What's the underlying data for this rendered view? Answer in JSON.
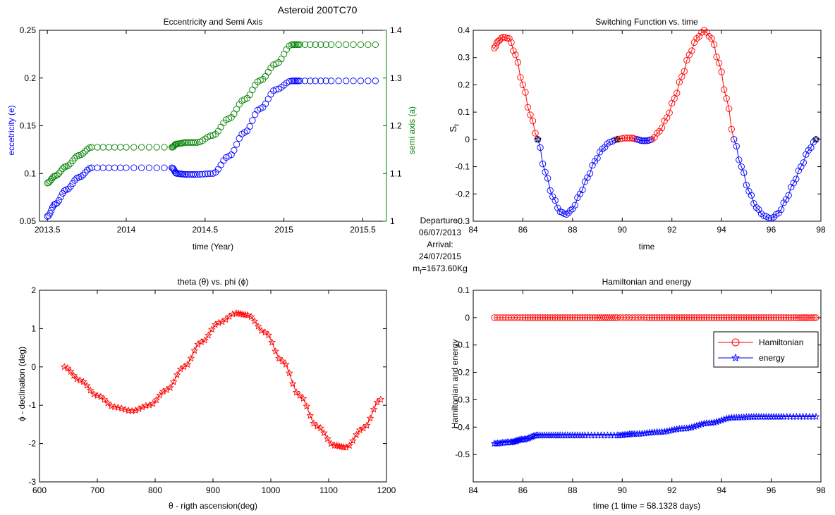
{
  "figure": {
    "title": "Asteroid 200TC70",
    "info_lines": [
      "Departure:",
      "06/07/2013",
      "Arrival:",
      "24/07/2015"
    ],
    "mass_label": "m",
    "mass_sub": "f",
    "mass_value": "=1673.60Kg"
  },
  "colors": {
    "blue": "#0000ff",
    "red": "#ff0000",
    "green": "#008000",
    "black": "#000000"
  },
  "chart_data": [
    {
      "id": "ecc",
      "type": "scatter",
      "title": "Eccentricity and Semi Axis",
      "xlabel": "time (Year)",
      "ylabel": "eccetricity (e)",
      "ylabel_right": "semi axis (a)",
      "xlim": [
        2013.45,
        2015.65
      ],
      "ylim": [
        0.05,
        0.25
      ],
      "ylim_right": [
        1.0,
        1.4
      ],
      "xticks": [
        2013.5,
        2014,
        2014.5,
        2015,
        2015.5
      ],
      "xtick_labels": [
        "2013.5",
        "2014",
        "2014.5",
        "2015",
        "2015.5"
      ],
      "yticks": [
        0.05,
        0.1,
        0.15,
        0.2,
        0.25
      ],
      "ytick_labels": [
        "0.05",
        "0.1",
        "0.15",
        "0.2",
        "0.25"
      ],
      "yticks_right": [
        1,
        1.1,
        1.2,
        1.3,
        1.4
      ],
      "ytick_labels_right": [
        "1",
        "1.1",
        "1.2",
        "1.3",
        "1.4"
      ],
      "series": [
        {
          "axis": "left",
          "color": "#0000ff",
          "marker": "circle",
          "x": [
            2013.5,
            2013.55,
            2013.62,
            2013.7,
            2013.78,
            2014.0,
            2014.29,
            2014.32,
            2014.38,
            2014.45,
            2014.55,
            2014.65,
            2014.75,
            2014.85,
            2014.95,
            2015.05,
            2015.1,
            2015.3,
            2015.58
          ],
          "y": [
            0.055,
            0.068,
            0.083,
            0.096,
            0.106,
            0.106,
            0.106,
            0.1,
            0.099,
            0.099,
            0.1,
            0.118,
            0.143,
            0.168,
            0.188,
            0.197,
            0.197,
            0.197,
            0.197
          ]
        },
        {
          "axis": "right",
          "color": "#008000",
          "marker": "circle",
          "x": [
            2013.5,
            2013.55,
            2013.62,
            2013.7,
            2013.78,
            2014.0,
            2014.29,
            2014.32,
            2014.38,
            2014.45,
            2014.55,
            2014.65,
            2014.75,
            2014.85,
            2014.95,
            2015.05,
            2015.1,
            2015.3,
            2015.58
          ],
          "y": [
            1.08,
            1.095,
            1.115,
            1.138,
            1.155,
            1.155,
            1.155,
            1.162,
            1.165,
            1.165,
            1.18,
            1.215,
            1.255,
            1.295,
            1.33,
            1.37,
            1.37,
            1.37,
            1.37
          ]
        }
      ]
    },
    {
      "id": "switch",
      "type": "line",
      "title": "Switching Function vs. time",
      "xlabel": "time",
      "ylabel": "S",
      "ylabel_sub": "f",
      "xlim": [
        84,
        98
      ],
      "ylim": [
        -0.3,
        0.4
      ],
      "xticks": [
        84,
        86,
        88,
        90,
        92,
        94,
        96,
        98
      ],
      "xtick_labels": [
        "84",
        "86",
        "88",
        "90",
        "92",
        "94",
        "96",
        "98"
      ],
      "yticks": [
        -0.3,
        -0.2,
        -0.1,
        0,
        0.1,
        0.2,
        0.3,
        0.4
      ],
      "ytick_labels": [
        "-0.3",
        "-0.2",
        "-0.1",
        "0",
        "0.1",
        "0.2",
        "0.3",
        "0.4"
      ],
      "series": [
        {
          "color": "#ff0000",
          "marker": "circle",
          "x": [
            84.85,
            85.0,
            85.2,
            85.45,
            85.7,
            86.0,
            86.3,
            86.6
          ],
          "y": [
            0.335,
            0.36,
            0.375,
            0.37,
            0.31,
            0.2,
            0.09,
            0.0
          ]
        },
        {
          "color": "#0000ff",
          "marker": "circle",
          "x": [
            86.6,
            86.9,
            87.2,
            87.5,
            87.75,
            88.0,
            88.3,
            88.6,
            88.9,
            89.2,
            89.5,
            89.8
          ],
          "y": [
            0.0,
            -0.12,
            -0.21,
            -0.265,
            -0.275,
            -0.255,
            -0.2,
            -0.14,
            -0.08,
            -0.035,
            -0.01,
            0.0
          ]
        },
        {
          "color": "#ff0000",
          "marker": "circle",
          "x": [
            89.8,
            90.1,
            90.4,
            90.6
          ],
          "y": [
            0.0,
            0.005,
            0.005,
            0.0
          ]
        },
        {
          "color": "#0000ff",
          "marker": "circle",
          "x": [
            90.6,
            90.8,
            91.0,
            91.2
          ],
          "y": [
            0.0,
            -0.005,
            -0.005,
            0.0
          ]
        },
        {
          "color": "#ff0000",
          "marker": "circle",
          "x": [
            91.2,
            91.5,
            91.8,
            92.1,
            92.4,
            92.7,
            93.0,
            93.3,
            93.6,
            93.9,
            94.2,
            94.5
          ],
          "y": [
            0.0,
            0.03,
            0.08,
            0.15,
            0.23,
            0.31,
            0.37,
            0.4,
            0.37,
            0.28,
            0.15,
            0.0
          ]
        },
        {
          "color": "#0000ff",
          "marker": "circle",
          "x": [
            94.5,
            94.8,
            95.1,
            95.4,
            95.7,
            96.0,
            96.3,
            96.6,
            96.9,
            97.2,
            97.5,
            97.8
          ],
          "y": [
            0.0,
            -0.1,
            -0.19,
            -0.25,
            -0.28,
            -0.29,
            -0.27,
            -0.22,
            -0.16,
            -0.1,
            -0.04,
            0.0
          ]
        },
        {
          "color": "#000000",
          "marker": "star",
          "line": false,
          "x": [
            86.6,
            89.8,
            97.8
          ],
          "y": [
            0.0,
            0.0,
            0.0
          ]
        }
      ]
    },
    {
      "id": "theta",
      "type": "line",
      "title": "theta (θ) vs. phi (ϕ)",
      "xlabel": "θ - rigth ascension(deg)",
      "ylabel": "ϕ - declination (deg)",
      "xlim": [
        600,
        1200
      ],
      "ylim": [
        -3,
        2
      ],
      "xticks": [
        600,
        700,
        800,
        900,
        1000,
        1100,
        1200
      ],
      "xtick_labels": [
        "600",
        "700",
        "800",
        "900",
        "1000",
        "1100",
        "1200"
      ],
      "yticks": [
        -3,
        -2,
        -1,
        0,
        1,
        2
      ],
      "ytick_labels": [
        "-3",
        "-2",
        "-1",
        "0",
        "1",
        "2"
      ],
      "series": [
        {
          "color": "#ff0000",
          "marker": "star",
          "x": [
            643,
            670,
            700,
            730,
            760,
            790,
            820,
            850,
            880,
            910,
            940,
            960,
            990,
            1020,
            1050,
            1080,
            1110,
            1130,
            1160,
            1190
          ],
          "y": [
            0.0,
            -0.35,
            -0.75,
            -1.05,
            -1.15,
            -1.0,
            -0.6,
            0.0,
            0.65,
            1.15,
            1.4,
            1.35,
            0.9,
            0.15,
            -0.75,
            -1.55,
            -2.05,
            -2.1,
            -1.6,
            -0.85
          ]
        }
      ]
    },
    {
      "id": "ham",
      "type": "line",
      "title": "Hamiltonian and energy",
      "xlabel": "time (1 time = 58.1328 days)",
      "ylabel": "Hamiltonian and energy",
      "xlim": [
        84,
        98
      ],
      "ylim": [
        -0.6,
        0.1
      ],
      "xticks": [
        84,
        86,
        88,
        90,
        92,
        94,
        96,
        98
      ],
      "xtick_labels": [
        "84",
        "86",
        "88",
        "90",
        "92",
        "94",
        "96",
        "98"
      ],
      "yticks": [
        -0.6,
        -0.5,
        -0.4,
        -0.3,
        -0.2,
        -0.1,
        0,
        0.1
      ],
      "ytick_labels": [
        "",
        "-0.5",
        "-0.4",
        "-0.3",
        "-0.2",
        "-0.1",
        "0",
        "0.1"
      ],
      "legend": "right",
      "series": [
        {
          "name": "Hamiltonian",
          "color": "#ff0000",
          "marker": "circle",
          "x": [
            84.85,
            86,
            87,
            88,
            89,
            89.8,
            91,
            92,
            93,
            94,
            95,
            96,
            97,
            97.8
          ],
          "y": [
            0,
            0,
            0,
            0,
            0,
            0,
            0,
            0,
            0,
            0,
            0,
            0,
            0,
            0
          ]
        },
        {
          "name": "energy",
          "color": "#0000ff",
          "marker": "star",
          "x": [
            84.85,
            85.5,
            86.0,
            86.6,
            87.5,
            88.5,
            89.8,
            90.5,
            91.5,
            92.5,
            93.5,
            94.5,
            95.5,
            96.5,
            97.8
          ],
          "y": [
            -0.46,
            -0.455,
            -0.445,
            -0.43,
            -0.43,
            -0.43,
            -0.43,
            -0.425,
            -0.418,
            -0.405,
            -0.385,
            -0.365,
            -0.362,
            -0.362,
            -0.362
          ]
        }
      ]
    }
  ]
}
